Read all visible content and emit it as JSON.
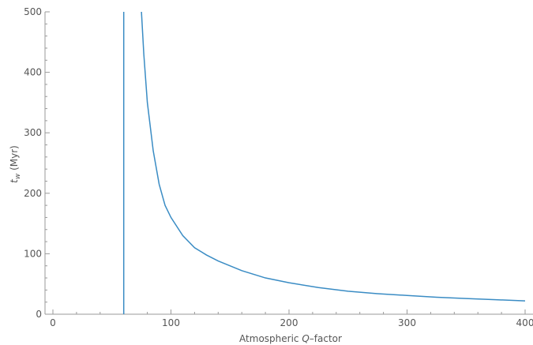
{
  "chart_data": {
    "type": "line",
    "xlabel_parts": [
      "Atmospheric ",
      "Q",
      "–factor"
    ],
    "ylabel_parts": [
      "t",
      "w",
      " (Myr)"
    ],
    "xlim": [
      0,
      400
    ],
    "ylim": [
      0,
      500
    ],
    "x_ticks": [
      0,
      100,
      200,
      300,
      400
    ],
    "y_ticks": [
      0,
      100,
      200,
      300,
      400,
      500
    ],
    "x_minor_step": 20,
    "y_minor_step": 20,
    "grid": false,
    "line_color": "#3a8cc4",
    "series": [
      {
        "points": [
          [
            75,
            500
          ],
          [
            77,
            430
          ],
          [
            80,
            350
          ],
          [
            85,
            270
          ],
          [
            90,
            215
          ],
          [
            95,
            180
          ],
          [
            100,
            160
          ],
          [
            110,
            130
          ],
          [
            120,
            110
          ],
          [
            130,
            98
          ],
          [
            140,
            88
          ],
          [
            160,
            72
          ],
          [
            180,
            60
          ],
          [
            200,
            52
          ],
          [
            225,
            44
          ],
          [
            250,
            38
          ],
          [
            275,
            34
          ],
          [
            300,
            31
          ],
          [
            325,
            28
          ],
          [
            350,
            26
          ],
          [
            375,
            24
          ],
          [
            400,
            22
          ]
        ]
      },
      {
        "points": [
          [
            60,
            0
          ],
          [
            60,
            500
          ]
        ]
      }
    ]
  }
}
